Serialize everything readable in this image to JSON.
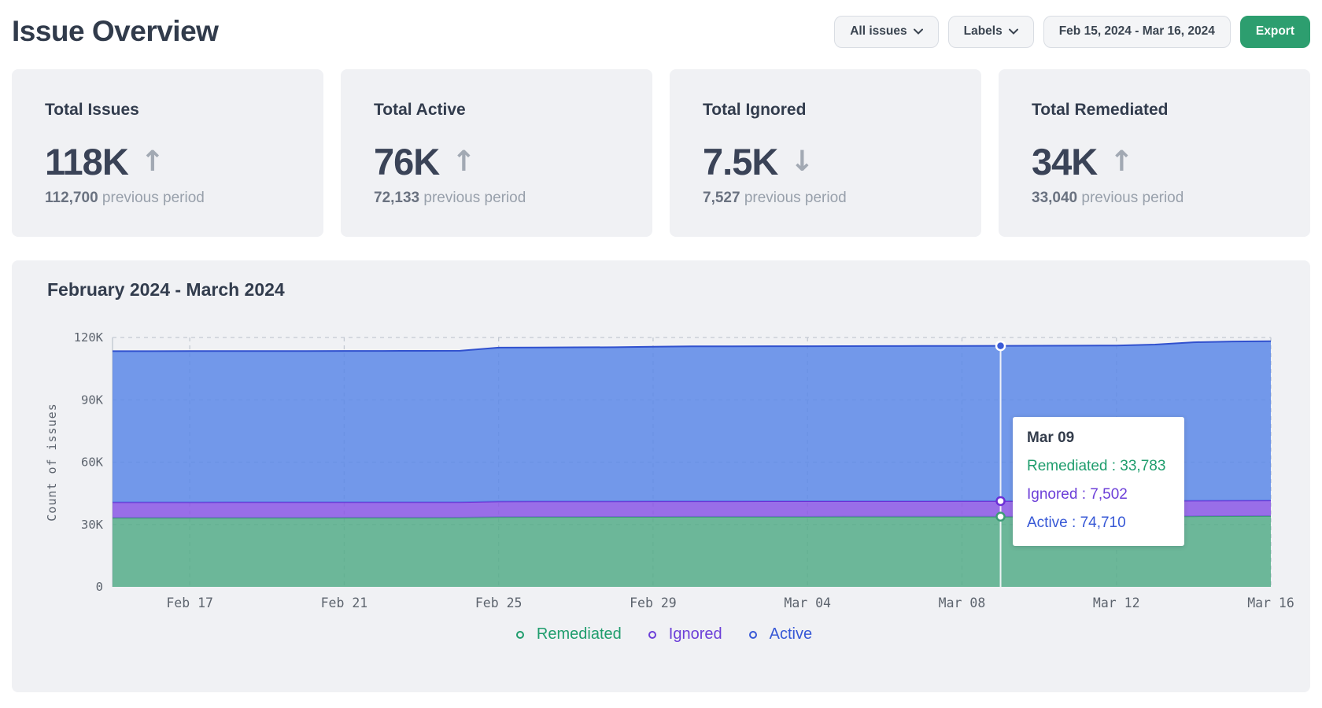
{
  "page": {
    "title": "Issue Overview"
  },
  "toolbar": {
    "filter_label": "All issues",
    "labels_label": "Labels",
    "date_range": "Feb 15, 2024 - Mar 16, 2024",
    "export_label": "Export"
  },
  "stats": [
    {
      "title": "Total Issues",
      "value": "118K",
      "arrow": "↑",
      "previous": "112,700",
      "previous_suffix": " previous period"
    },
    {
      "title": "Total Active",
      "value": "76K",
      "arrow": "↑",
      "previous": "72,133",
      "previous_suffix": " previous period"
    },
    {
      "title": "Total Ignored",
      "value": "7.5K",
      "arrow": "↓",
      "previous": "7,527",
      "previous_suffix": " previous period"
    },
    {
      "title": "Total Remediated",
      "value": "34K",
      "arrow": "↑",
      "previous": "33,040",
      "previous_suffix": " previous period"
    }
  ],
  "chart_data": {
    "type": "area",
    "stacked": true,
    "title": "February 2024 - March 2024",
    "ylabel": "Count of issues",
    "ylim": [
      0,
      120000
    ],
    "grid": true,
    "legend_position": "bottom",
    "yticks": [
      {
        "v": 0,
        "label": "0"
      },
      {
        "v": 30000,
        "label": "30K"
      },
      {
        "v": 60000,
        "label": "60K"
      },
      {
        "v": 90000,
        "label": "90K"
      },
      {
        "v": 120000,
        "label": "120K"
      }
    ],
    "x": [
      "Feb 15",
      "Feb 16",
      "Feb 17",
      "Feb 18",
      "Feb 19",
      "Feb 20",
      "Feb 21",
      "Feb 22",
      "Feb 23",
      "Feb 24",
      "Feb 25",
      "Feb 26",
      "Feb 27",
      "Feb 28",
      "Feb 29",
      "Mar 01",
      "Mar 02",
      "Mar 03",
      "Mar 04",
      "Mar 05",
      "Mar 06",
      "Mar 07",
      "Mar 08",
      "Mar 09",
      "Mar 10",
      "Mar 11",
      "Mar 12",
      "Mar 13",
      "Mar 14",
      "Mar 15",
      "Mar 16"
    ],
    "xticks": [
      "Feb 17",
      "Feb 21",
      "Feb 25",
      "Feb 29",
      "Mar 04",
      "Mar 08",
      "Mar 12",
      "Mar 16"
    ],
    "series": [
      {
        "name": "Remediated",
        "color": "#1f9d6d",
        "fill": "#55ad88",
        "line": "#3d9b77",
        "values": [
          33200,
          33210,
          33220,
          33230,
          33240,
          33250,
          33260,
          33270,
          33280,
          33300,
          33600,
          33640,
          33660,
          33680,
          33700,
          33710,
          33720,
          33730,
          33740,
          33750,
          33760,
          33770,
          33780,
          33783,
          33800,
          33820,
          33850,
          33900,
          34000,
          34060,
          34100
        ]
      },
      {
        "name": "Ignored",
        "color": "#6c3fd8",
        "fill": "#8a57e5",
        "line": "#6b2fd6",
        "values": [
          7530,
          7529,
          7528,
          7527,
          7526,
          7525,
          7524,
          7523,
          7522,
          7521,
          7520,
          7519,
          7518,
          7517,
          7516,
          7515,
          7514,
          7513,
          7512,
          7510,
          7508,
          7506,
          7504,
          7502,
          7501,
          7500,
          7499,
          7498,
          7496,
          7494,
          7490
        ]
      },
      {
        "name": "Active",
        "color": "#3758d6",
        "fill": "#5c88e8",
        "line": "#3151ce",
        "values": [
          72670,
          72680,
          72690,
          72700,
          72710,
          72720,
          72730,
          72740,
          72760,
          72800,
          74000,
          74050,
          74080,
          74100,
          74350,
          74500,
          74520,
          74540,
          74560,
          74580,
          74600,
          74640,
          74680,
          74710,
          74730,
          74750,
          74800,
          75200,
          76200,
          76500,
          76620
        ]
      }
    ],
    "cursor": {
      "x_label": "Mar 09",
      "index": 23
    },
    "tooltip": {
      "title": "Mar 09",
      "rows": [
        {
          "text": "Remediated : 33,783",
          "color": "#1f9d6d"
        },
        {
          "text": "Ignored : 7,502",
          "color": "#6c3fd8"
        },
        {
          "text": "Active : 74,710",
          "color": "#3758d6"
        }
      ]
    }
  }
}
